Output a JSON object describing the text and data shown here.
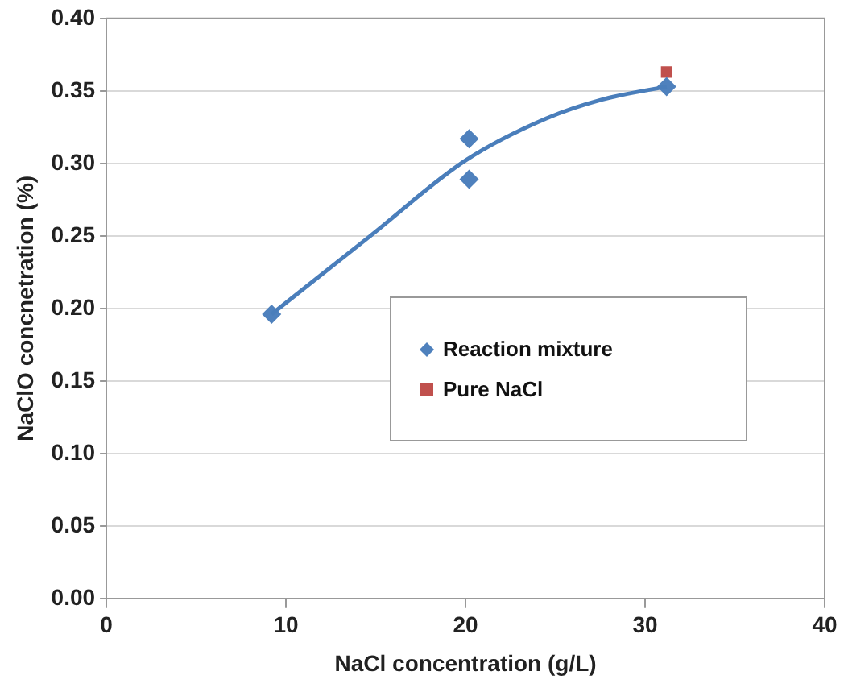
{
  "chart_data": {
    "type": "scatter",
    "xlabel": "NaCl concentration (g/L)",
    "ylabel": "NaClO concnetration (%)",
    "xlim": [
      0,
      40
    ],
    "xticks": [
      0,
      10,
      20,
      30,
      40
    ],
    "ylim": [
      0,
      0.4
    ],
    "yticks": [
      {
        "value": 0,
        "label": "0.00"
      },
      {
        "value": 0.05,
        "label": "0.05"
      },
      {
        "value": 0.1,
        "label": "0.10"
      },
      {
        "value": 0.15,
        "label": "0.15"
      },
      {
        "value": 0.2,
        "label": "0.20"
      },
      {
        "value": 0.25,
        "label": "0.25"
      },
      {
        "value": 0.3,
        "label": "0.30"
      },
      {
        "value": 0.35,
        "label": "0.35"
      },
      {
        "value": 0.4,
        "label": "0.40"
      }
    ],
    "grid": "y",
    "legend": "right",
    "series": [
      {
        "type": "line",
        "color": "#4a7ebb",
        "marker": "none",
        "x": [
          9.2,
          14.6,
          20,
          24.5,
          27.6,
          31.2
        ],
        "values": [
          0.196,
          0.249,
          0.302,
          0.331,
          0.344,
          0.353
        ]
      },
      {
        "name": "Reaction mixture",
        "color": "#4f81bd",
        "marker": "diamond",
        "x": [
          9.2,
          20.2,
          20.2,
          31.2
        ],
        "values": [
          0.196,
          0.317,
          0.289,
          0.353
        ]
      },
      {
        "name": "Pure NaCl",
        "color": "#c0504d",
        "marker": "square",
        "x": [
          31.2
        ],
        "values": [
          0.363
        ]
      }
    ]
  }
}
